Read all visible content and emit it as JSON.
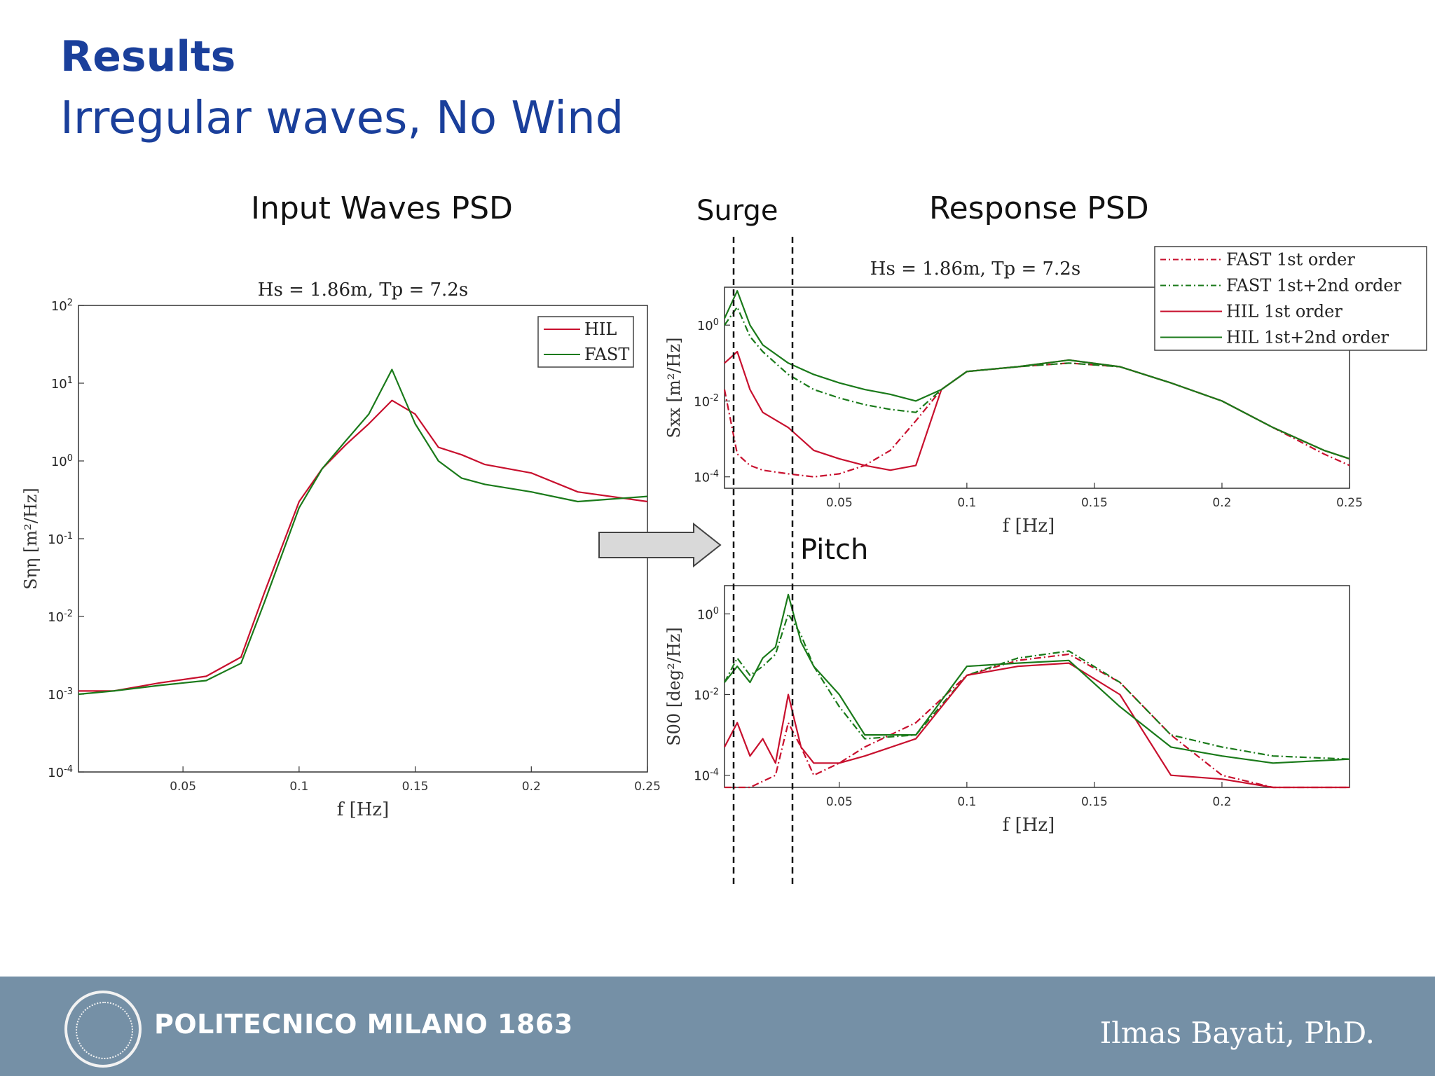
{
  "slide": {
    "title": "Results",
    "subtitle": "Irregular waves, No Wind",
    "label_input": "Input Waves PSD",
    "label_response": "Response PSD",
    "label_surge": "Surge",
    "label_pitch": "Pitch"
  },
  "footer": {
    "logo_text": "POLITECNICO MILANO 1863",
    "author": "Ilmas Bayati, PhD."
  },
  "colors": {
    "title": "#1a3f9b",
    "hil": "#c8102e",
    "fast": "#1a7a1a",
    "footer": "#7590a6"
  },
  "chart_data": [
    {
      "type": "line",
      "title": "Hs = 1.86m, Tp = 7.2s",
      "xlabel": "f [Hz]",
      "ylabel": "Sηη [m²/Hz]",
      "xlim": [
        0.005,
        0.25
      ],
      "ylim": [
        0.0001,
        100
      ],
      "yscale": "log",
      "xticks": [
        "0.05",
        "0.1",
        "0.15",
        "0.2",
        "0.25"
      ],
      "yticks": [
        "10^2",
        "10^1",
        "10^0",
        "10^-1",
        "10^-2",
        "10^-3",
        "10^-4"
      ],
      "legend": "top-right",
      "series": [
        {
          "name": "HIL",
          "style": "solid",
          "color": "#c8102e",
          "x": [
            0.005,
            0.02,
            0.04,
            0.06,
            0.075,
            0.085,
            0.1,
            0.11,
            0.12,
            0.13,
            0.14,
            0.15,
            0.16,
            0.17,
            0.18,
            0.2,
            0.22,
            0.25
          ],
          "y": [
            0.0011,
            0.0011,
            0.0014,
            0.0017,
            0.003,
            0.02,
            0.3,
            0.8,
            1.6,
            3,
            6,
            4,
            1.5,
            1.2,
            0.9,
            0.7,
            0.4,
            0.3
          ]
        },
        {
          "name": "FAST",
          "style": "solid",
          "color": "#1a7a1a",
          "x": [
            0.005,
            0.02,
            0.04,
            0.06,
            0.075,
            0.085,
            0.1,
            0.11,
            0.12,
            0.13,
            0.14,
            0.15,
            0.16,
            0.17,
            0.18,
            0.2,
            0.22,
            0.25
          ],
          "y": [
            0.001,
            0.0011,
            0.0013,
            0.0015,
            0.0025,
            0.015,
            0.25,
            0.8,
            1.8,
            4,
            15,
            3,
            1,
            0.6,
            0.5,
            0.4,
            0.3,
            0.35
          ]
        }
      ]
    },
    {
      "type": "line",
      "title": "Hs = 1.86m, Tp = 7.2s",
      "xlabel": "f [Hz]",
      "ylabel": "Sxx [m²/Hz]",
      "xlim": [
        0.005,
        0.25
      ],
      "ylim": [
        5e-05,
        10
      ],
      "yscale": "log",
      "xticks": [
        "0.05",
        "0.1",
        "0.15",
        "0.2",
        "0.25"
      ],
      "yticks": [
        "10^0",
        "10^-2",
        "10^-4"
      ],
      "legend": "top-right",
      "series": [
        {
          "name": "FAST 1st order",
          "style": "dash-dot",
          "color": "#c8102e",
          "x": [
            0.005,
            0.01,
            0.015,
            0.02,
            0.03,
            0.04,
            0.05,
            0.06,
            0.07,
            0.08,
            0.09,
            0.1,
            0.12,
            0.14,
            0.16,
            0.18,
            0.2,
            0.22,
            0.24,
            0.25
          ],
          "y": [
            0.02,
            0.0004,
            0.0002,
            0.00015,
            0.00012,
            0.0001,
            0.00012,
            0.0002,
            0.0005,
            0.003,
            0.02,
            0.06,
            0.08,
            0.1,
            0.08,
            0.03,
            0.01,
            0.002,
            0.0004,
            0.0002
          ]
        },
        {
          "name": "FAST 1st+2nd order",
          "style": "dash-dot",
          "color": "#1a7a1a",
          "x": [
            0.005,
            0.01,
            0.015,
            0.02,
            0.03,
            0.04,
            0.05,
            0.06,
            0.07,
            0.08,
            0.09,
            0.1,
            0.12,
            0.14,
            0.16,
            0.18,
            0.2,
            0.22,
            0.24,
            0.25
          ],
          "y": [
            1,
            3,
            0.5,
            0.2,
            0.05,
            0.02,
            0.012,
            0.008,
            0.006,
            0.005,
            0.02,
            0.06,
            0.08,
            0.1,
            0.08,
            0.03,
            0.01,
            0.002,
            0.0005,
            0.0003
          ]
        },
        {
          "name": "HIL 1st order",
          "style": "solid",
          "color": "#c8102e",
          "x": [
            0.005,
            0.01,
            0.015,
            0.02,
            0.03,
            0.04,
            0.05,
            0.06,
            0.07,
            0.08,
            0.09,
            0.1,
            0.12,
            0.14,
            0.16,
            0.18,
            0.2,
            0.22,
            0.24,
            0.25
          ],
          "y": [
            0.1,
            0.2,
            0.02,
            0.005,
            0.002,
            0.0005,
            0.0003,
            0.0002,
            0.00015,
            0.0002,
            0.02,
            0.06,
            0.08,
            0.12,
            0.08,
            0.03,
            0.01,
            0.002,
            0.0005,
            0.0003
          ]
        },
        {
          "name": "HIL 1st+2nd order",
          "style": "solid",
          "color": "#1a7a1a",
          "x": [
            0.005,
            0.01,
            0.015,
            0.02,
            0.03,
            0.04,
            0.05,
            0.06,
            0.07,
            0.08,
            0.09,
            0.1,
            0.12,
            0.14,
            0.16,
            0.18,
            0.2,
            0.22,
            0.24,
            0.25
          ],
          "y": [
            1.5,
            8,
            1,
            0.3,
            0.1,
            0.05,
            0.03,
            0.02,
            0.015,
            0.01,
            0.02,
            0.06,
            0.08,
            0.12,
            0.08,
            0.03,
            0.01,
            0.002,
            0.0005,
            0.0003
          ]
        }
      ]
    },
    {
      "type": "line",
      "title": "",
      "xlabel": "f [Hz]",
      "ylabel": "S00 [deg²/Hz]",
      "xlim": [
        0.005,
        0.25
      ],
      "ylim": [
        5e-05,
        5
      ],
      "yscale": "log",
      "xticks": [
        "0.05",
        "0.1",
        "0.15",
        "0.2"
      ],
      "yticks": [
        "10^0",
        "10^-2",
        "10^-4"
      ],
      "series": [
        {
          "name": "FAST 1st order",
          "style": "dash-dot",
          "color": "#c8102e",
          "x": [
            0.005,
            0.015,
            0.025,
            0.03,
            0.035,
            0.04,
            0.05,
            0.06,
            0.08,
            0.1,
            0.12,
            0.14,
            0.16,
            0.18,
            0.2,
            0.22,
            0.25
          ],
          "y": [
            5e-05,
            5e-05,
            0.0001,
            0.002,
            0.0005,
            0.0001,
            0.0002,
            0.0005,
            0.002,
            0.03,
            0.07,
            0.1,
            0.02,
            0.001,
            0.0001,
            5e-05,
            5e-05
          ]
        },
        {
          "name": "FAST 1st+2nd order",
          "style": "dash-dot",
          "color": "#1a7a1a",
          "x": [
            0.005,
            0.01,
            0.015,
            0.02,
            0.025,
            0.03,
            0.035,
            0.04,
            0.05,
            0.06,
            0.08,
            0.1,
            0.12,
            0.14,
            0.16,
            0.18,
            0.2,
            0.22,
            0.25
          ],
          "y": [
            0.02,
            0.08,
            0.03,
            0.05,
            0.1,
            1,
            0.3,
            0.05,
            0.005,
            0.0008,
            0.001,
            0.03,
            0.08,
            0.12,
            0.02,
            0.001,
            0.0005,
            0.0003,
            0.00025
          ]
        },
        {
          "name": "HIL 1st order",
          "style": "solid",
          "color": "#c8102e",
          "x": [
            0.005,
            0.01,
            0.015,
            0.02,
            0.025,
            0.03,
            0.035,
            0.04,
            0.05,
            0.06,
            0.08,
            0.1,
            0.12,
            0.14,
            0.16,
            0.18,
            0.2,
            0.22,
            0.25
          ],
          "y": [
            0.0005,
            0.002,
            0.0003,
            0.0008,
            0.0002,
            0.01,
            0.0005,
            0.0002,
            0.0002,
            0.0003,
            0.0008,
            0.03,
            0.05,
            0.06,
            0.01,
            0.0001,
            8e-05,
            5e-05,
            5e-05
          ]
        },
        {
          "name": "HIL 1st+2nd order",
          "style": "solid",
          "color": "#1a7a1a",
          "x": [
            0.005,
            0.01,
            0.015,
            0.02,
            0.025,
            0.03,
            0.035,
            0.04,
            0.05,
            0.06,
            0.08,
            0.1,
            0.12,
            0.14,
            0.16,
            0.18,
            0.2,
            0.22,
            0.25
          ],
          "y": [
            0.02,
            0.05,
            0.02,
            0.08,
            0.15,
            3,
            0.2,
            0.05,
            0.01,
            0.001,
            0.001,
            0.05,
            0.06,
            0.07,
            0.005,
            0.0005,
            0.0003,
            0.0002,
            0.00025
          ]
        }
      ]
    }
  ]
}
